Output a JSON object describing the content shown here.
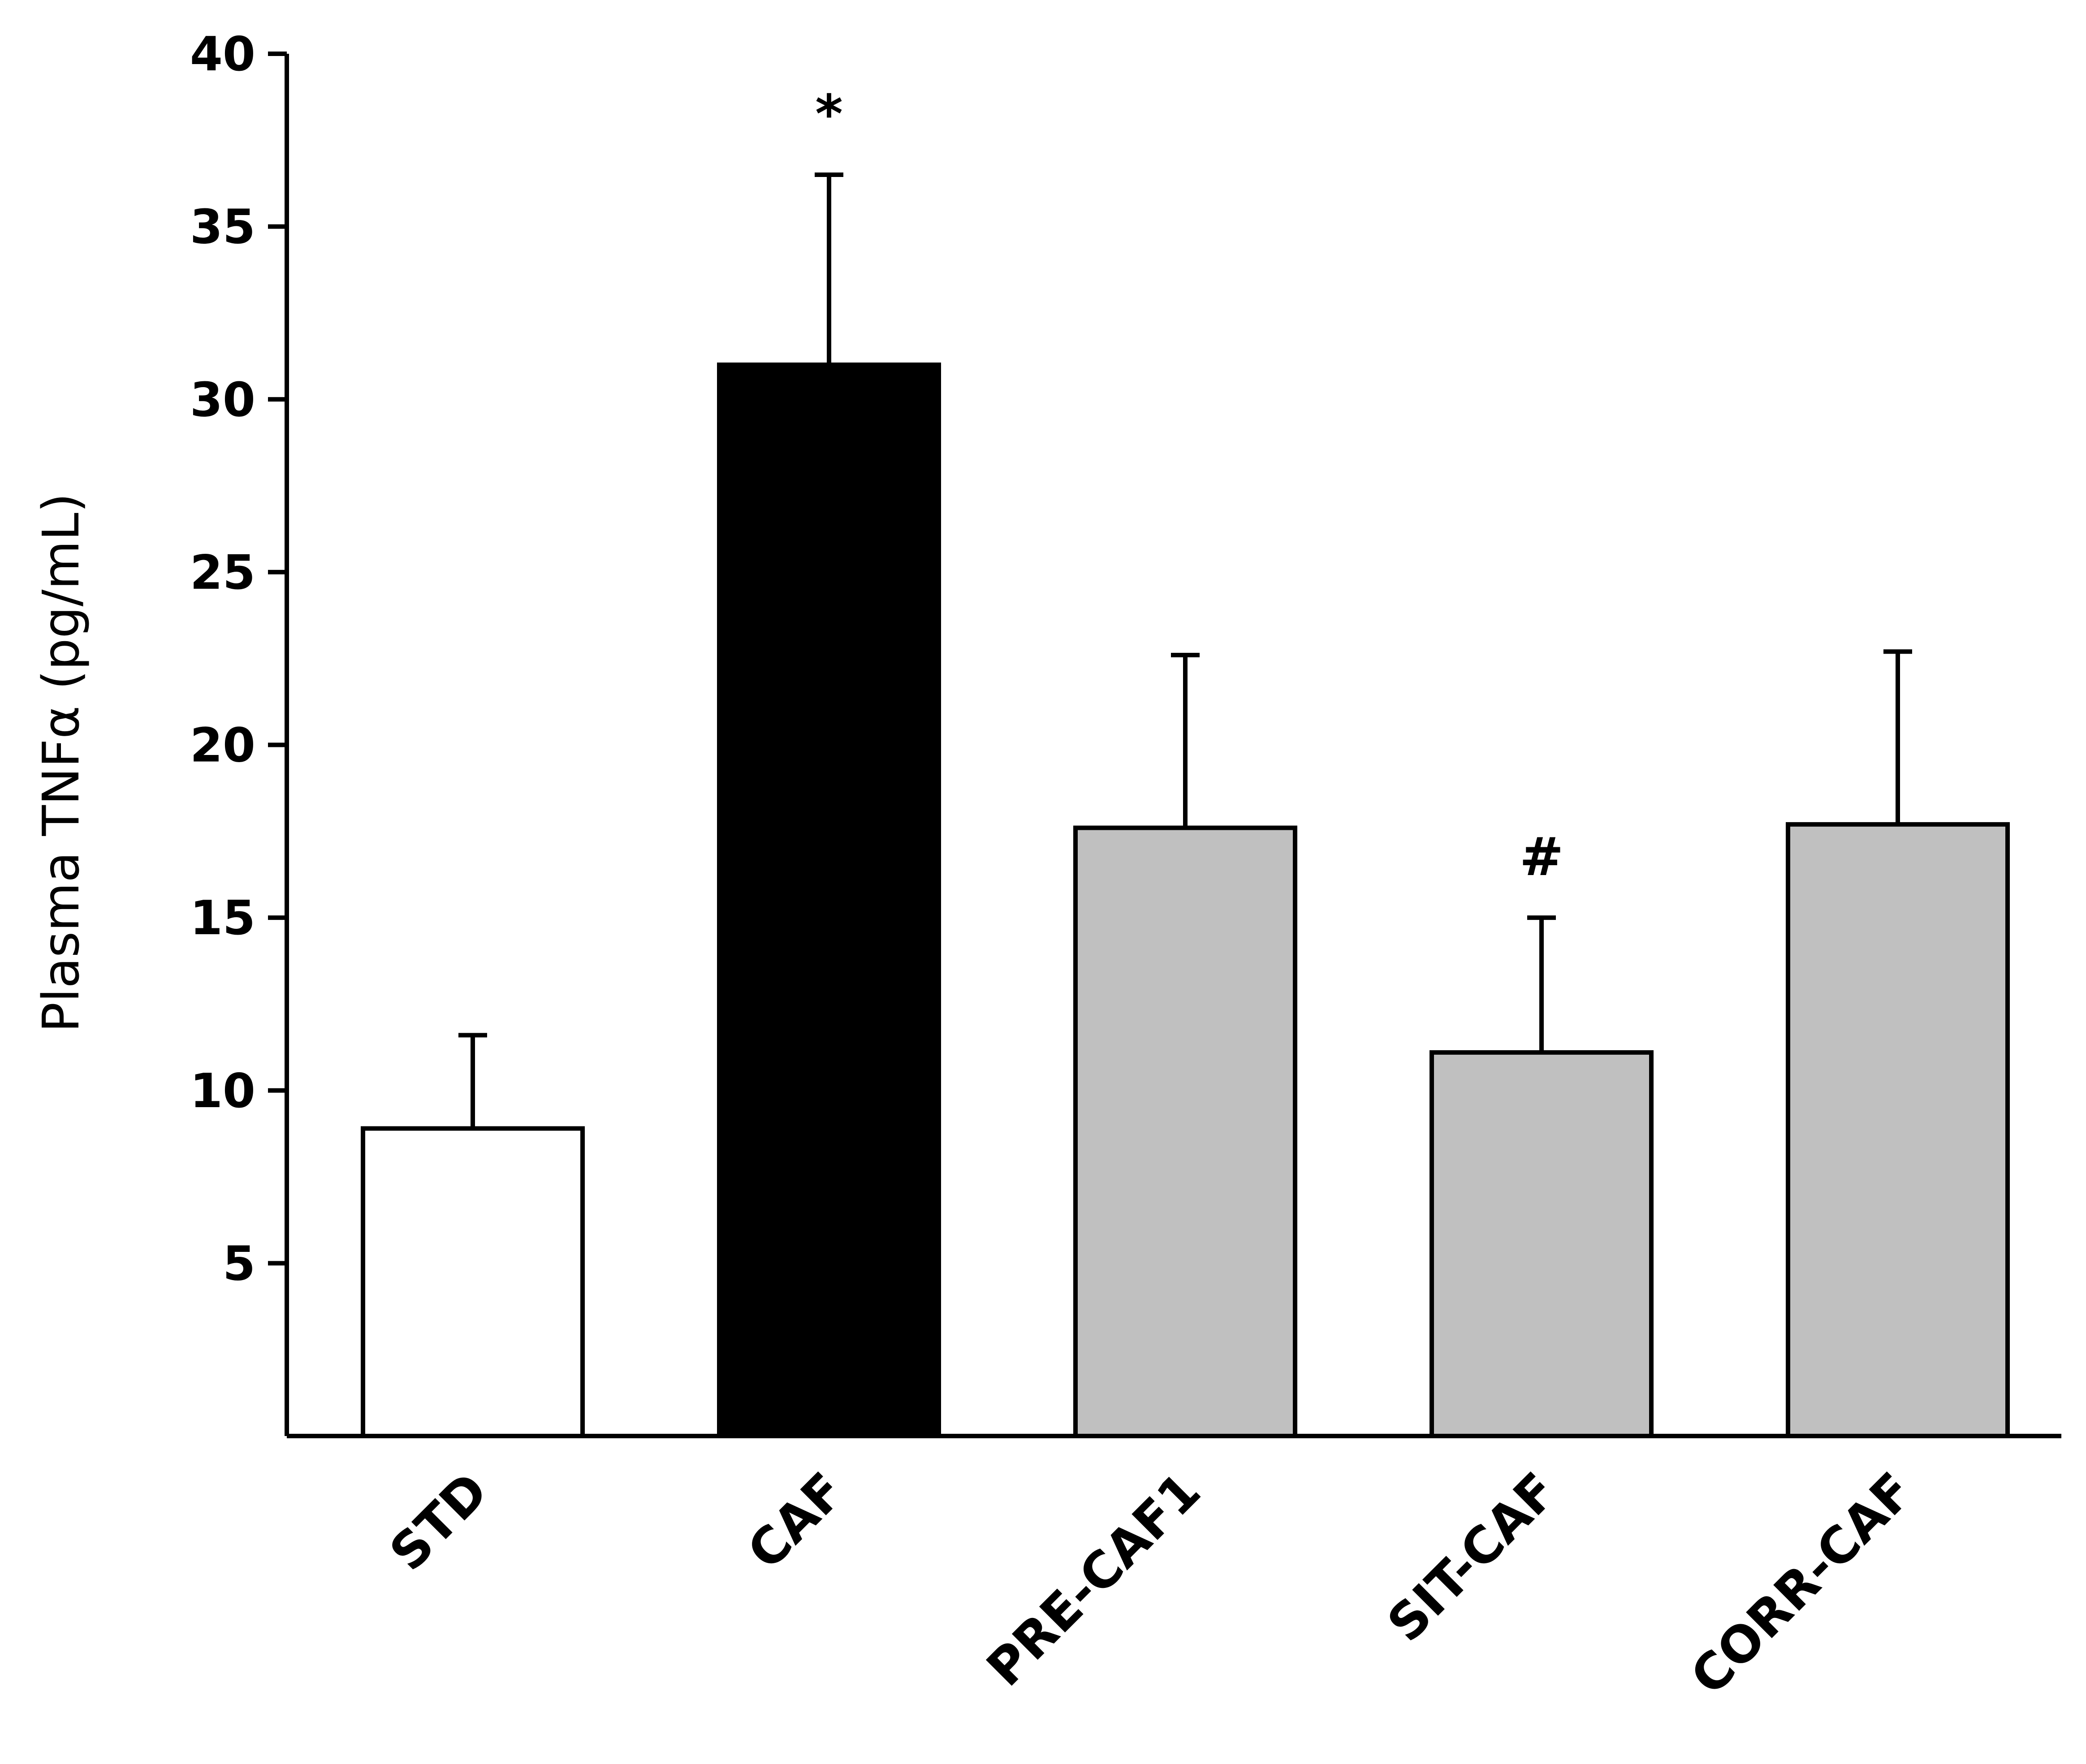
{
  "chart_data": {
    "type": "bar",
    "title": "",
    "xlabel": "",
    "ylabel": "Plasma TNFα (pg/mL)",
    "ylim": [
      0,
      40
    ],
    "yticks": [
      5,
      10,
      15,
      20,
      25,
      30,
      35,
      40
    ],
    "grid": false,
    "categories": [
      "STD",
      "CAF",
      "PRE-CAF1",
      "SIT-CAF",
      "CORR-CAF"
    ],
    "values": [
      8.9,
      31.0,
      17.6,
      11.1,
      17.7
    ],
    "errors": [
      2.7,
      5.5,
      5.0,
      3.9,
      5.0
    ],
    "bar_colors": [
      "#ffffff",
      "#000000",
      "#c0c0c0",
      "#c0c0c0",
      "#c0c0c0"
    ],
    "annotations": [
      "",
      "*",
      "",
      "#",
      ""
    ]
  }
}
